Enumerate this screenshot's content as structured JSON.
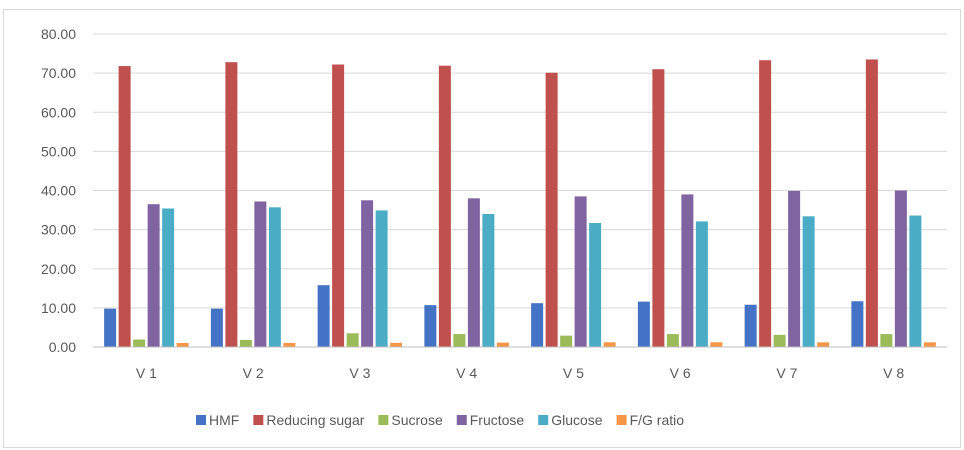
{
  "chart_data": {
    "type": "bar",
    "title": "",
    "xlabel": "",
    "ylabel": "",
    "ylim": [
      0,
      80
    ],
    "yticks": [
      "0.00",
      "10.00",
      "20.00",
      "30.00",
      "40.00",
      "50.00",
      "60.00",
      "70.00",
      "80.00"
    ],
    "categories": [
      "V 1",
      "V 2",
      "V 3",
      "V 4",
      "V 5",
      "V 6",
      "V 7",
      "V 8"
    ],
    "grid": true,
    "legend_position": "bottom",
    "series": [
      {
        "name": "HMF",
        "color": "#4472c4",
        "values": [
          9.8,
          9.8,
          15.8,
          10.7,
          11.2,
          11.6,
          10.8,
          11.7
        ]
      },
      {
        "name": "Reducing sugar",
        "color": "#c0504d",
        "values": [
          71.8,
          72.8,
          72.2,
          71.9,
          70.1,
          71.0,
          73.3,
          73.5
        ]
      },
      {
        "name": "Sucrose",
        "color": "#9bbb59",
        "values": [
          1.9,
          1.8,
          3.5,
          3.3,
          2.9,
          3.3,
          3.1,
          3.3
        ]
      },
      {
        "name": "Fructose",
        "color": "#8064a2",
        "values": [
          36.5,
          37.2,
          37.5,
          38.0,
          38.5,
          39.0,
          39.9,
          40.0
        ]
      },
      {
        "name": "Glucose",
        "color": "#4bacc6",
        "values": [
          35.4,
          35.7,
          34.9,
          34.0,
          31.7,
          32.1,
          33.4,
          33.6
        ]
      },
      {
        "name": "F/G ratio",
        "color": "#f79646",
        "values": [
          1.03,
          1.04,
          1.07,
          1.12,
          1.21,
          1.21,
          1.19,
          1.19
        ]
      }
    ]
  }
}
